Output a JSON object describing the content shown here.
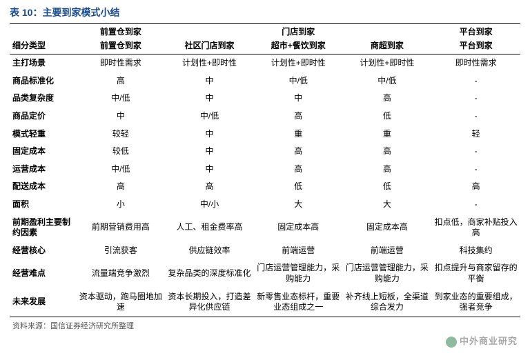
{
  "title": "表 10：主要到家模式小结",
  "groupHeaders": [
    "前置仓到家",
    "门店到家",
    "",
    "",
    "平台到家"
  ],
  "subHeaders": {
    "label": "细分类型",
    "cols": [
      "前置仓到家",
      "社区门店到家",
      "超市+餐饮到家",
      "商超到家",
      "平台到家"
    ]
  },
  "rows": [
    {
      "label": "主打场景",
      "cells": [
        "即时性需求",
        "计划性+即时性",
        "计划性+即时性",
        "计划性+即时性",
        "即时性需求"
      ]
    },
    {
      "label": "商品标准化",
      "cells": [
        "高",
        "中",
        "中/低",
        "中/低",
        "-"
      ]
    },
    {
      "label": "品类复杂度",
      "cells": [
        "中/低",
        "中",
        "中",
        "高",
        "-"
      ]
    },
    {
      "label": "商品定价",
      "cells": [
        "中",
        "中/低",
        "高",
        "低",
        "-"
      ]
    },
    {
      "label": "模式轻重",
      "cells": [
        "较轻",
        "中",
        "重",
        "重",
        "轻"
      ]
    },
    {
      "label": "固定成本",
      "cells": [
        "较低",
        "中",
        "高",
        "高",
        "-"
      ]
    },
    {
      "label": "运营成本",
      "cells": [
        "中/低",
        "中",
        "高",
        "高",
        "-"
      ]
    },
    {
      "label": "配送成本",
      "cells": [
        "高",
        "高",
        "低",
        "低",
        "高"
      ]
    },
    {
      "label": "面积",
      "cells": [
        "小",
        "中/小",
        "大",
        "大",
        "-"
      ]
    },
    {
      "label": "前期盈利主要制约因素",
      "cells": [
        "前期营销费用高",
        "人工、租金费率高",
        "固定成本高",
        "固定成本高",
        "扣点低，商家补贴投入高"
      ]
    },
    {
      "label": "经营核心",
      "cells": [
        "引流获客",
        "供应链效率",
        "前端运营",
        "前端运营",
        "科技集约"
      ]
    },
    {
      "label": "经营难点",
      "cells": [
        "流量端竞争激烈",
        "复杂品类的深度标准化",
        "门店运营管理能力，采购能力",
        "门店运营管理能力，采购能力",
        "扣点提升与商家留存的平衡"
      ]
    },
    {
      "label": "未来发展",
      "cells": [
        "资本驱动，跑马圈地加速",
        "资本长期投入，打造差异化供应链",
        "新零售业态标杆，重要业态组成之一",
        "补齐线上短板，全渠道综合发力",
        "到家业态的重要组成，强者竞争"
      ]
    }
  ],
  "source": "资料来源：国信证券经济研究所整理",
  "watermark": "中外商业研究"
}
